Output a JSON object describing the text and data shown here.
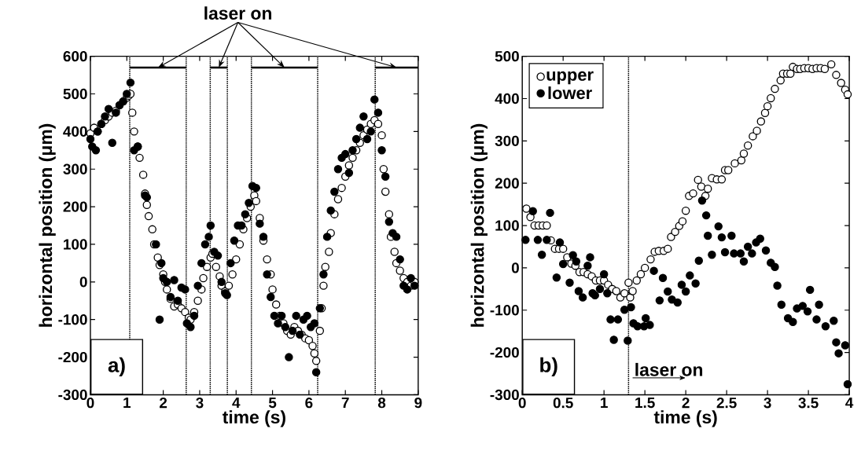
{
  "chart_data": [
    {
      "type": "scatter",
      "xlabel": "time (s)",
      "ylabel": "horizontal position (μm)",
      "xlim": [
        0,
        9
      ],
      "ylim": [
        -300,
        600
      ],
      "xticks": [
        0,
        1,
        2,
        3,
        4,
        5,
        6,
        7,
        8,
        9
      ],
      "yticks": [
        -300,
        -200,
        -100,
        0,
        100,
        200,
        300,
        400,
        500,
        600
      ],
      "legend": false,
      "annotations": [
        {
          "text": "laser on",
          "x": 1.855,
          "y": 570
        },
        "a)"
      ],
      "ref_lines": [
        {
          "axis": "x",
          "value": 1.08,
          "color": "#000000",
          "line_style": "dotted"
        },
        {
          "axis": "x",
          "value": 2.63,
          "color": "#000000",
          "line_style": "dotted"
        },
        {
          "axis": "x",
          "value": 3.29,
          "color": "#000000",
          "line_style": "dotted"
        },
        {
          "axis": "x",
          "value": 3.76,
          "color": "#000000",
          "line_style": "dotted"
        },
        {
          "axis": "x",
          "value": 4.42,
          "color": "#000000",
          "line_style": "dotted"
        },
        {
          "axis": "x",
          "value": 6.24,
          "color": "#000000",
          "line_style": "dotted"
        },
        {
          "axis": "x",
          "value": 7.82,
          "color": "#000000",
          "line_style": "dotted"
        }
      ],
      "series": [
        {
          "type": "line",
          "marker": "none",
          "color": "#000000",
          "x": [
            1.08,
            2.63
          ],
          "values": [
            570,
            570
          ]
        },
        {
          "type": "line",
          "marker": "none",
          "color": "#000000",
          "x": [
            3.29,
            3.76
          ],
          "values": [
            570,
            570
          ]
        },
        {
          "type": "line",
          "marker": "none",
          "color": "#000000",
          "x": [
            4.42,
            6.24
          ],
          "values": [
            570,
            570
          ]
        },
        {
          "type": "line",
          "marker": "none",
          "color": "#000000",
          "x": [
            7.82,
            9
          ],
          "values": [
            570,
            570
          ]
        },
        {
          "marker": "circle",
          "color": "#ffffff",
          "x": [
            0,
            0.1,
            0.2,
            0.3,
            0.4,
            0.5,
            0.6,
            0.7,
            0.8,
            0.9,
            1.0,
            1.05,
            1.1,
            1.15,
            1.2,
            1.3,
            1.35,
            1.45,
            1.5,
            1.55,
            1.6,
            1.7,
            1.75,
            1.85,
            1.9,
            2.0,
            2.05,
            2.1,
            2.2,
            2.3,
            2.4,
            2.5,
            2.6,
            2.7,
            2.75,
            2.85,
            2.95,
            3.05,
            3.1,
            3.2,
            3.3,
            3.35,
            3.45,
            3.55,
            3.6,
            3.7,
            3.8,
            3.9,
            4.0,
            4.1,
            4.2,
            4.3,
            4.4,
            4.5,
            4.55,
            4.65,
            4.75,
            4.85,
            4.95,
            5.0,
            5.1,
            5.2,
            5.3,
            5.4,
            5.5,
            5.6,
            5.7,
            5.8,
            5.9,
            6.0,
            6.1,
            6.15,
            6.2,
            6.3,
            6.35,
            6.4,
            6.45,
            6.55,
            6.6,
            6.7,
            6.8,
            6.9,
            7.0,
            7.1,
            7.2,
            7.3,
            7.4,
            7.5,
            7.6,
            7.7,
            7.8,
            7.9,
            8.0,
            8.05,
            8.1,
            8.2,
            8.25,
            8.35,
            8.4,
            8.5,
            8.6,
            8.7,
            8.8,
            8.9
          ],
          "values": [
            395,
            410,
            400,
            420,
            430,
            440,
            450,
            455,
            470,
            480,
            490,
            495,
            500,
            450,
            400,
            360,
            330,
            285,
            235,
            205,
            175,
            140,
            100,
            65,
            45,
            20,
            0,
            -20,
            -45,
            -65,
            -60,
            -70,
            -80,
            -95,
            -100,
            -80,
            -50,
            -20,
            10,
            40,
            65,
            75,
            40,
            15,
            -10,
            -25,
            -10,
            20,
            60,
            100,
            140,
            170,
            200,
            230,
            215,
            170,
            110,
            60,
            20,
            -20,
            -60,
            -90,
            -110,
            -130,
            -140,
            -120,
            -130,
            -140,
            -150,
            -155,
            -170,
            -190,
            -210,
            -130,
            -70,
            -10,
            40,
            80,
            130,
            180,
            220,
            250,
            280,
            310,
            330,
            350,
            370,
            390,
            405,
            420,
            430,
            420,
            390,
            300,
            240,
            180,
            120,
            80,
            50,
            30,
            10,
            0,
            -10,
            0
          ]
        },
        {
          "marker": "circle",
          "color": "#000000",
          "x": [
            0,
            0.05,
            0.15,
            0.2,
            0.3,
            0.4,
            0.5,
            0.6,
            0.7,
            0.8,
            0.9,
            1.0,
            1.1,
            1.2,
            1.3,
            1.5,
            1.55,
            1.8,
            1.9,
            1.95,
            2.0,
            2.1,
            2.2,
            2.3,
            2.4,
            2.5,
            2.6,
            2.65,
            2.75,
            2.85,
            2.95,
            3.05,
            3.15,
            3.25,
            3.3,
            3.4,
            3.5,
            3.6,
            3.7,
            3.75,
            3.85,
            3.95,
            4.05,
            4.15,
            4.25,
            4.35,
            4.45,
            4.55,
            4.65,
            4.75,
            4.85,
            4.95,
            5.05,
            5.15,
            5.25,
            5.35,
            5.45,
            5.55,
            5.65,
            5.75,
            5.85,
            5.95,
            6.05,
            6.15,
            6.2,
            6.3,
            6.4,
            6.5,
            6.6,
            6.7,
            6.8,
            6.9,
            7.0,
            7.1,
            7.2,
            7.3,
            7.4,
            7.5,
            7.6,
            7.7,
            7.8,
            7.9,
            8.0,
            8.1,
            8.2,
            8.3,
            8.4,
            8.5,
            8.6,
            8.7,
            8.8,
            8.9
          ],
          "values": [
            380,
            360,
            350,
            400,
            420,
            440,
            460,
            370,
            450,
            470,
            480,
            500,
            530,
            350,
            360,
            230,
            225,
            100,
            -100,
            50,
            10,
            0,
            -40,
            5,
            -50,
            -15,
            -20,
            -110,
            -120,
            -90,
            -10,
            50,
            100,
            120,
            150,
            80,
            70,
            0,
            -30,
            -35,
            50,
            110,
            150,
            150,
            180,
            210,
            255,
            250,
            155,
            120,
            20,
            -40,
            -90,
            -110,
            -90,
            -120,
            -200,
            -130,
            -90,
            -140,
            -100,
            -90,
            -120,
            -110,
            -240,
            -70,
            20,
            120,
            190,
            240,
            300,
            330,
            340,
            290,
            350,
            380,
            410,
            440,
            380,
            400,
            485,
            450,
            350,
            280,
            160,
            130,
            120,
            60,
            -10,
            -20,
            10,
            -10
          ]
        }
      ]
    },
    {
      "type": "scatter",
      "xlabel": "time (s)",
      "ylabel": "horizontal position (μm)",
      "xlim": [
        0,
        4
      ],
      "ylim": [
        -300,
        500
      ],
      "xticks": [
        0,
        0.5,
        1,
        1.5,
        2,
        2.5,
        3,
        3.5,
        4
      ],
      "yticks": [
        -300,
        -200,
        -100,
        0,
        100,
        200,
        300,
        400,
        500
      ],
      "legend": "top left",
      "annotations": [
        "b)",
        "laser on"
      ],
      "ref_lines": [
        {
          "axis": "x",
          "value": 1.3,
          "color": "#000000",
          "line_style": "dotted"
        }
      ],
      "series": [
        {
          "name": "upper",
          "marker": "circle",
          "color": "#ffffff",
          "x": [
            0.05,
            0.1,
            0.15,
            0.2,
            0.25,
            0.3,
            0.35,
            0.4,
            0.45,
            0.5,
            0.55,
            0.6,
            0.65,
            0.7,
            0.75,
            0.8,
            0.85,
            0.9,
            0.95,
            1.0,
            1.05,
            1.1,
            1.15,
            1.2,
            1.25,
            1.3,
            1.32,
            1.35,
            1.4,
            1.45,
            1.5,
            1.57,
            1.62,
            1.67,
            1.73,
            1.78,
            1.82,
            1.87,
            1.92,
            1.96,
            2.0,
            2.04,
            2.09,
            2.15,
            2.19,
            2.24,
            2.27,
            2.32,
            2.38,
            2.44,
            2.48,
            2.52,
            2.6,
            2.68,
            2.71,
            2.76,
            2.82,
            2.87,
            2.92,
            2.97,
            3.0,
            3.04,
            3.09,
            3.16,
            3.19,
            3.24,
            3.28,
            3.31,
            3.36,
            3.4,
            3.45,
            3.5,
            3.55,
            3.6,
            3.65,
            3.7,
            3.78,
            3.84,
            3.9,
            3.95,
            3.98
          ],
          "values": [
            140,
            120,
            100,
            100,
            100,
            100,
            65,
            45,
            45,
            45,
            25,
            10,
            5,
            -10,
            -10,
            -15,
            -20,
            -30,
            -30,
            -30,
            -40,
            -50,
            -55,
            -70,
            -60,
            -35,
            -70,
            -55,
            -30,
            -15,
            0,
            20,
            38,
            40,
            40,
            45,
            73,
            85,
            99,
            110,
            135,
            170,
            176,
            208,
            192,
            170,
            187,
            212,
            209,
            209,
            231,
            231,
            247,
            254,
            270,
            289,
            311,
            324,
            346,
            366,
            382,
            401,
            423,
            443,
            459,
            459,
            459,
            475,
            470,
            470,
            472,
            472,
            470,
            472,
            472,
            470,
            481,
            456,
            437,
            421,
            410
          ]
        },
        {
          "name": "lower",
          "marker": "circle",
          "color": "#000000",
          "x": [
            0.04,
            0.13,
            0.19,
            0.24,
            0.3,
            0.34,
            0.42,
            0.46,
            0.5,
            0.58,
            0.62,
            0.66,
            0.69,
            0.74,
            0.8,
            0.83,
            0.86,
            0.89,
            0.95,
            1.0,
            1.04,
            1.08,
            1.12,
            1.17,
            1.25,
            1.29,
            1.33,
            1.36,
            1.41,
            1.49,
            1.51,
            1.56,
            1.61,
            1.68,
            1.72,
            1.78,
            1.83,
            1.9,
            1.95,
            2.0,
            2.05,
            2.12,
            2.16,
            2.2,
            2.25,
            2.27,
            2.32,
            2.4,
            2.44,
            2.48,
            2.56,
            2.59,
            2.67,
            2.71,
            2.76,
            2.81,
            2.86,
            2.91,
            2.98,
            3.04,
            3.09,
            3.12,
            3.17,
            3.25,
            3.31,
            3.36,
            3.43,
            3.49,
            3.52,
            3.6,
            3.63,
            3.71,
            3.81,
            3.84,
            3.87,
            3.95,
            3.98
          ],
          "values": [
            66,
            134,
            66,
            31,
            66,
            130,
            -23,
            60,
            9,
            -35,
            30,
            15,
            -55,
            -70,
            5,
            25,
            -60,
            -65,
            -50,
            -15,
            -60,
            -122,
            -170,
            -122,
            -99,
            -172,
            -93,
            -131,
            -138,
            -138,
            -119,
            -135,
            -7,
            -77,
            -24,
            -56,
            -75,
            -82,
            -40,
            -56,
            -18,
            -37,
            17,
            159,
            124,
            76,
            31,
            98,
            72,
            37,
            76,
            34,
            34,
            15,
            50,
            34,
            60,
            69,
            41,
            12,
            2,
            -42,
            -87,
            -119,
            -128,
            -96,
            -90,
            -103,
            -52,
            -122,
            -87,
            -138,
            -125,
            -176,
            -202,
            -183,
            -275
          ]
        }
      ]
    }
  ]
}
